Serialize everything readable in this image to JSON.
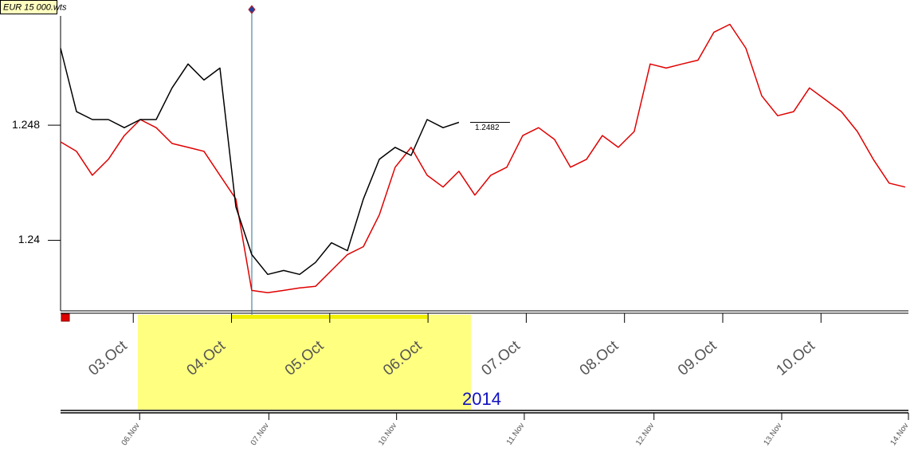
{
  "chart_data": {
    "type": "line",
    "title": "EUR 15 000.wts",
    "annotation": "1.2482",
    "year_label": "2014",
    "x": [
      2.26,
      2.422,
      2.584,
      2.747,
      2.909,
      3.071,
      3.233,
      3.395,
      3.558,
      3.72,
      3.882,
      4.044,
      4.206,
      4.369,
      4.531,
      4.693,
      4.855,
      5.017,
      5.18,
      5.342,
      5.504,
      5.666,
      5.828,
      5.991,
      6.153,
      6.315,
      6.477,
      6.639,
      6.802,
      6.964,
      7.126,
      7.288,
      7.45,
      7.613,
      7.775,
      7.937,
      8.099,
      8.261,
      8.424,
      8.586,
      8.748,
      8.91,
      9.072,
      9.235,
      9.397,
      9.559,
      9.721,
      9.883,
      10.046,
      10.208,
      10.37,
      10.532,
      10.694,
      10.857
    ],
    "series": [
      {
        "color": "#000000",
        "values": [
          1.25335,
          1.24894,
          1.24839,
          1.24839,
          1.24783,
          1.24839,
          1.24839,
          1.25059,
          1.25225,
          1.25114,
          1.25197,
          1.24232,
          1.23901,
          1.23763,
          1.2379,
          1.23763,
          1.23846,
          1.23983,
          1.23928,
          1.24287,
          1.24563,
          1.24646,
          1.2459,
          1.24839,
          1.24783,
          1.2482,
          null,
          null,
          null,
          null,
          null,
          null,
          null,
          null,
          null,
          null,
          null,
          null,
          null,
          null,
          null,
          null,
          null,
          null,
          null,
          null,
          null,
          null,
          null,
          null,
          null,
          null,
          null,
          null
        ]
      },
      {
        "color": "#e00000",
        "values": [
          1.24684,
          1.24618,
          1.24452,
          1.24563,
          1.24728,
          1.24839,
          1.24783,
          1.24673,
          1.24646,
          1.24618,
          1.24452,
          1.24287,
          1.23652,
          1.23636,
          1.23652,
          1.23669,
          1.2368,
          1.2379,
          1.23901,
          1.23956,
          1.24177,
          1.24508,
          1.24646,
          1.24452,
          1.2437,
          1.2448,
          1.24314,
          1.24452,
          1.24508,
          1.24728,
          1.24783,
          1.24701,
          1.24508,
          1.24563,
          1.24728,
          1.24646,
          1.24756,
          1.25225,
          1.25197,
          1.25225,
          1.25252,
          1.25446,
          1.25501,
          1.25335,
          1.25004,
          1.24866,
          1.24894,
          1.25059,
          1.24977,
          1.24894,
          1.24756,
          1.24563,
          1.24397,
          1.2437
        ]
      }
    ],
    "xlim": [
      2.26,
      10.89
    ],
    "ylim": [
      1.2351,
      1.2567
    ],
    "yticks": [
      1.24,
      1.248
    ],
    "xticks": [
      {
        "value": 3,
        "label": "03.Oct"
      },
      {
        "value": 4,
        "label": "04.Oct"
      },
      {
        "value": 5,
        "label": "05.Oct"
      },
      {
        "value": 6,
        "label": "06.Oct"
      },
      {
        "value": 7,
        "label": "07.Oct"
      },
      {
        "value": 8,
        "label": "08.Oct"
      },
      {
        "value": 9,
        "label": "09.Oct"
      },
      {
        "value": 10,
        "label": "10.Oct"
      }
    ],
    "x2ticks": [
      {
        "value": 3.065,
        "label": "06.Nov"
      },
      {
        "value": 4.38,
        "label": "07.Nov"
      },
      {
        "value": 5.68,
        "label": "10.Nov"
      },
      {
        "value": 6.98,
        "label": "11.Nov"
      },
      {
        "value": 8.3,
        "label": "12.Nov"
      },
      {
        "value": 9.6,
        "label": "13.Nov"
      },
      {
        "value": 10.89,
        "label": "14.Nov"
      }
    ]
  }
}
